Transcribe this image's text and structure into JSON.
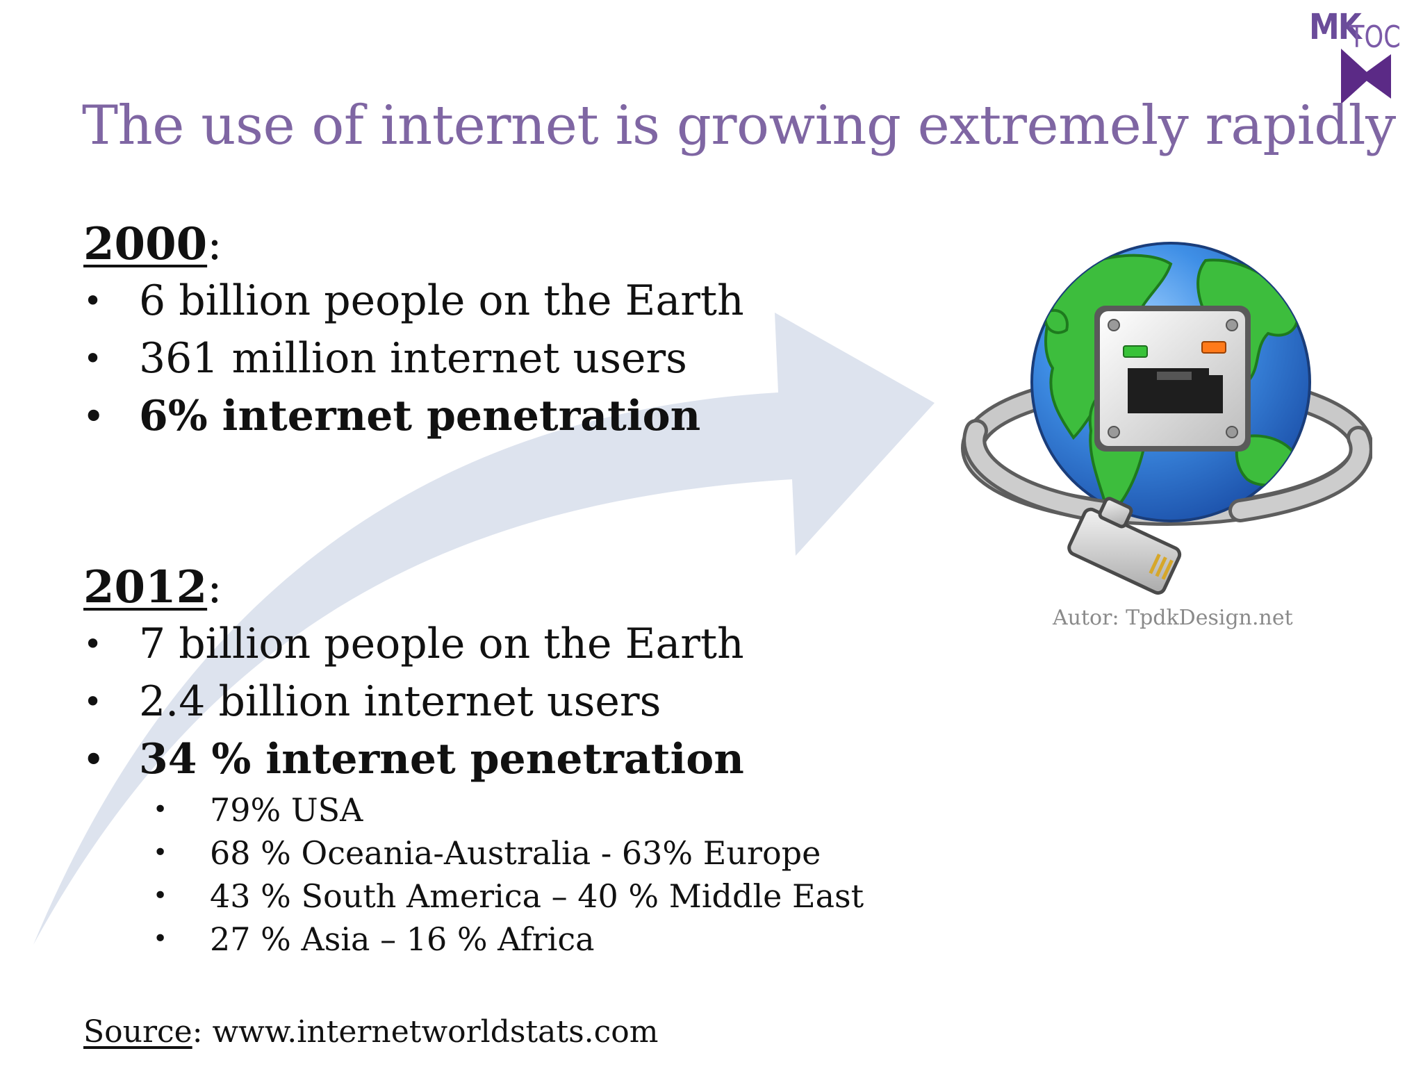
{
  "logo": {
    "mk": "MK",
    "toc": "TOC"
  },
  "title": "The use of internet is growing extremely rapidly",
  "section_2000": {
    "year": "2000",
    "colon": ":",
    "items": [
      "6 billion people on the Earth",
      "361 million internet users",
      "6% internet penetration"
    ]
  },
  "section_2012": {
    "year": "2012",
    "colon": ":",
    "items": [
      "7 billion people on the Earth",
      "2.4 billion internet users",
      "34 % internet penetration"
    ],
    "subitems": [
      "79% USA",
      "68 % Oceania-Australia - 63% Europe",
      "43 % South America – 40 % Middle East",
      "27 % Asia – 16 % Africa"
    ]
  },
  "image_credit": "Autor: TpdkDesign.net",
  "source": {
    "label": "Source",
    "text": ": www.internetworldstats.com"
  },
  "colors": {
    "title": "#7f66a3",
    "logo": "#6b4c9a",
    "arrow": "#dde3ee"
  }
}
